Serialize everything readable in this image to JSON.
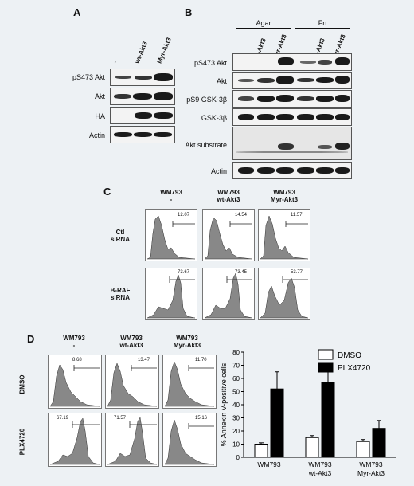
{
  "panelA": {
    "letter": "A",
    "lanes": [
      "-",
      "wt-Akt3",
      "Myr-Akt3"
    ],
    "rows": [
      "pS473 Akt",
      "Akt",
      "HA",
      "Actin"
    ]
  },
  "panelB": {
    "letter": "B",
    "groups": [
      "Agar",
      "Fn"
    ],
    "lanes": [
      "-",
      "wt-Akt3",
      "Myr-Akt3",
      "-",
      "wt-Akt3",
      "Myr-Akt3"
    ],
    "rows": [
      "pS473 Akt",
      "Akt",
      "pS9 GSK-3β",
      "GSK-3β",
      "Akt substrate",
      "Actin"
    ]
  },
  "panelC": {
    "letter": "C",
    "cols": [
      [
        "WM793",
        "-"
      ],
      [
        "WM793",
        "wt-Akt3"
      ],
      [
        "WM793",
        "Myr-Akt3"
      ]
    ],
    "rows": [
      [
        "Ctl",
        "siRNA"
      ],
      [
        "B-RAF",
        "siRNA"
      ]
    ],
    "gates": [
      [
        "12.07",
        "14.54",
        "11.57"
      ],
      [
        "73.67",
        "73.45",
        "53.77"
      ]
    ]
  },
  "panelD": {
    "letter": "D",
    "cols": [
      [
        "WM793",
        "-"
      ],
      [
        "WM793",
        "wt-Akt3"
      ],
      [
        "WM793",
        "Myr-Akt3"
      ]
    ],
    "rows": [
      "DMSO",
      "PLX4720"
    ],
    "gates": [
      [
        "8.68",
        "13.47",
        "11.70"
      ],
      [
        "67.19",
        "71.57",
        "15.16"
      ]
    ]
  },
  "chart_data": {
    "type": "bar",
    "categories": [
      "WM793",
      "WM793 wt-Akt3",
      "WM793 Myr-Akt3"
    ],
    "series": [
      {
        "name": "DMSO",
        "values": [
          10,
          15,
          12
        ],
        "errors": [
          1,
          1.5,
          1.5
        ],
        "color": "#ffffff"
      },
      {
        "name": "PLX4720",
        "values": [
          52,
          57,
          22
        ],
        "errors": [
          13,
          13,
          6
        ],
        "color": "#000000"
      }
    ],
    "ylabel": "% Annexin V-positive cells",
    "ylim": [
      0,
      80
    ],
    "yticks": [
      0,
      10,
      20,
      30,
      40,
      50,
      60,
      70,
      80
    ],
    "legend": "top-right"
  }
}
